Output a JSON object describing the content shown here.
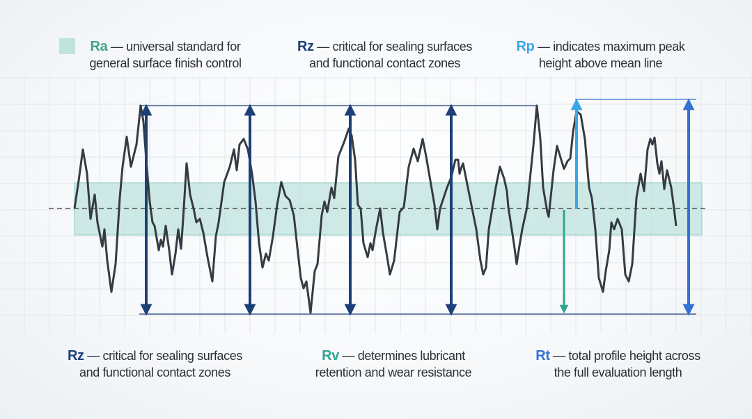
{
  "colors": {
    "ra": "#3ea58f",
    "ra_band": "#bfe3dd",
    "rz": "#1c3f78",
    "rp": "#3ba6e6",
    "rv": "#2fa592",
    "rt": "#3371d2",
    "profile": "#353b42",
    "grid": "#dde2e7"
  },
  "labels": {
    "ra": {
      "key": "Ra",
      "text": "— universal standard for",
      "line2": "general surface finish control"
    },
    "rz_top": {
      "key": "Rz",
      "text": "— critical for sealing surfaces",
      "line2": "and functional contact zones"
    },
    "rp": {
      "key": "Rp",
      "text": "— indicates maximum peak",
      "line2": "height above mean line"
    },
    "rz_bottom": {
      "key": "Rz",
      "text": "— critical for sealing surfaces",
      "line2": "and functional contact zones"
    },
    "rv": {
      "key": "Rv",
      "text": "— determines lubricant",
      "line2": "retention and wear resistance"
    },
    "rt": {
      "key": "Rt",
      "text": "— total profile height across",
      "line2": "the full evaluation length"
    }
  }
}
